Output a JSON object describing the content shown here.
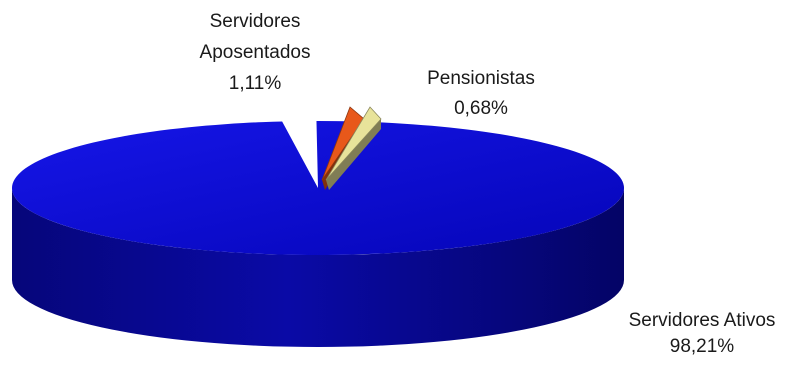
{
  "chart_data": {
    "type": "pie",
    "style": "3d-exploded",
    "slices": [
      {
        "label_lines": [
          "Servidores Ativos",
          "98,21%"
        ],
        "value": 98.21,
        "display_value": "98,21%",
        "color": "#0a0acc",
        "exploded": false
      },
      {
        "label_lines": [
          "Servidores",
          "Aposentados",
          "1,11%"
        ],
        "value": 1.11,
        "display_value": "1,11%",
        "color": "#e8581a",
        "exploded": true
      },
      {
        "label_lines": [
          "Pensionistas",
          "0,68%"
        ],
        "value": 0.68,
        "display_value": "0,68%",
        "color": "#e8e39a",
        "exploded": true
      }
    ],
    "legend": "none"
  }
}
